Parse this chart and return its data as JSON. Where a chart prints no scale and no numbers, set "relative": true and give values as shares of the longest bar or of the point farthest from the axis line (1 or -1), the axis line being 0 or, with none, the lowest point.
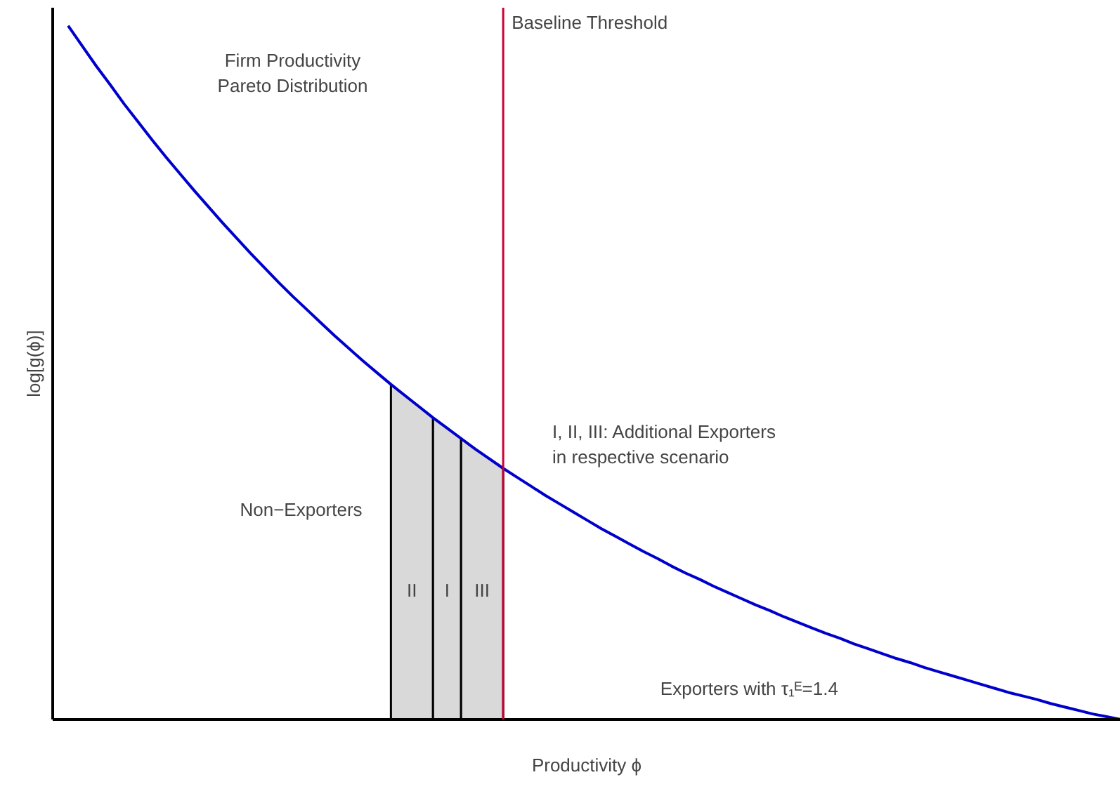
{
  "chart_data": {
    "type": "line",
    "relative": true,
    "xlabel": "Productivity ϕ",
    "ylabel": "log[g(ϕ)]",
    "categories": [
      null,
      null,
      null,
      null,
      null,
      null,
      null,
      null,
      null,
      null,
      null,
      null,
      null,
      null,
      null,
      null,
      null,
      null,
      null,
      null,
      null,
      null,
      null,
      null,
      null,
      null,
      null,
      null,
      null,
      null,
      null,
      null,
      null,
      null,
      null,
      null,
      null,
      null,
      null,
      null,
      null,
      null,
      null,
      null,
      null,
      null,
      null,
      null,
      null,
      null,
      null,
      null,
      null,
      null,
      null,
      null,
      null,
      null,
      null,
      null,
      null,
      null,
      null,
      null,
      null,
      null,
      null,
      null,
      null,
      null,
      null,
      null,
      null,
      null,
      null,
      null
    ],
    "series": [
      {
        "color": "#0000cd",
        "values": [
          1.0,
          0.971,
          0.942,
          0.915,
          0.887,
          0.861,
          0.835,
          0.81,
          0.786,
          0.762,
          0.739,
          0.716,
          0.694,
          0.672,
          0.651,
          0.63,
          0.61,
          0.591,
          0.572,
          0.553,
          0.535,
          0.517,
          0.5,
          0.483,
          0.467,
          0.451,
          0.435,
          0.42,
          0.405,
          0.39,
          0.376,
          0.362,
          0.349,
          0.336,
          0.323,
          0.311,
          0.299,
          0.287,
          0.275,
          0.264,
          0.253,
          0.242,
          0.232,
          0.221,
          0.211,
          0.202,
          0.192,
          0.183,
          0.174,
          0.165,
          0.157,
          0.148,
          0.14,
          0.132,
          0.124,
          0.117,
          0.109,
          0.102,
          0.095,
          0.088,
          0.082,
          0.075,
          0.069,
          0.063,
          0.057,
          0.051,
          0.045,
          0.039,
          0.034,
          0.029,
          0.023,
          0.018,
          0.013,
          0.008,
          0.004,
          0.0
        ]
      },
      {
        "type": "area",
        "name": "II",
        "color": "#d9d9d9",
        "values": [
          null,
          null,
          null,
          null,
          null,
          null,
          null,
          null,
          null,
          null,
          null,
          null,
          null,
          null,
          null,
          null,
          null,
          null,
          null,
          null,
          null,
          null,
          null,
          0.483,
          0.467,
          0.451,
          0.435,
          null,
          null,
          null,
          null,
          null,
          null,
          null,
          null,
          null,
          null,
          null,
          null,
          null,
          null,
          null,
          null,
          null,
          null,
          null,
          null,
          null,
          null,
          null,
          null,
          null,
          null,
          null,
          null,
          null,
          null,
          null,
          null,
          null,
          null,
          null,
          null,
          null,
          null,
          null,
          null,
          null,
          null,
          null,
          null,
          null,
          null,
          null,
          null,
          null
        ]
      },
      {
        "type": "area",
        "name": "I",
        "color": "#d9d9d9",
        "values": [
          null,
          null,
          null,
          null,
          null,
          null,
          null,
          null,
          null,
          null,
          null,
          null,
          null,
          null,
          null,
          null,
          null,
          null,
          null,
          null,
          null,
          null,
          null,
          null,
          null,
          null,
          0.435,
          0.42,
          0.405,
          null,
          null,
          null,
          null,
          null,
          null,
          null,
          null,
          null,
          null,
          null,
          null,
          null,
          null,
          null,
          null,
          null,
          null,
          null,
          null,
          null,
          null,
          null,
          null,
          null,
          null,
          null,
          null,
          null,
          null,
          null,
          null,
          null,
          null,
          null,
          null,
          null,
          null,
          null,
          null,
          null,
          null,
          null,
          null,
          null,
          null,
          null
        ]
      },
      {
        "type": "area",
        "name": "III",
        "color": "#d9d9d9",
        "values": [
          null,
          null,
          null,
          null,
          null,
          null,
          null,
          null,
          null,
          null,
          null,
          null,
          null,
          null,
          null,
          null,
          null,
          null,
          null,
          null,
          null,
          null,
          null,
          null,
          null,
          null,
          null,
          null,
          0.405,
          0.39,
          0.376,
          0.362,
          null,
          null,
          null,
          null,
          null,
          null,
          null,
          null,
          null,
          null,
          null,
          null,
          null,
          null,
          null,
          null,
          null,
          null,
          null,
          null,
          null,
          null,
          null,
          null,
          null,
          null,
          null,
          null,
          null,
          null,
          null,
          null,
          null,
          null,
          null,
          null,
          null,
          null,
          null,
          null,
          null,
          null,
          null,
          null
        ]
      }
    ],
    "annotations": [
      "Baseline Threshold",
      "Firm Productivity\nPareto Distribution",
      "Non−Exporters",
      "I, II, III: Additional Exporters\nin respective scenario",
      "Exporters with τ₁ᴱ=1.4"
    ]
  }
}
